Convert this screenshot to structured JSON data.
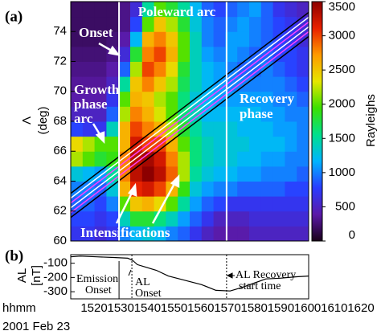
{
  "chart_data": [
    {
      "type": "heatmap",
      "panel_label": "(a)",
      "x": [
        1520,
        1525,
        1530,
        1535,
        1540,
        1545,
        1550,
        1555,
        1560,
        1565,
        1570,
        1575,
        1580,
        1585,
        1590,
        1595,
        1600,
        1605,
        1610,
        1615
      ],
      "y": [
        60,
        61,
        62,
        63,
        64,
        65,
        66,
        67,
        68,
        69,
        70,
        71,
        72,
        73,
        74,
        75
      ],
      "z": [
        [
          700,
          700,
          600,
          700,
          1000,
          1200,
          1300,
          1200,
          1000,
          900,
          700,
          500,
          400,
          400,
          400,
          500,
          500,
          500,
          500,
          500
        ],
        [
          800,
          800,
          700,
          800,
          1400,
          1800,
          1800,
          1600,
          1400,
          1100,
          900,
          700,
          500,
          500,
          500,
          600,
          600,
          600,
          600,
          600
        ],
        [
          900,
          900,
          800,
          1000,
          2000,
          2500,
          2600,
          2400,
          2000,
          1500,
          1100,
          900,
          800,
          700,
          700,
          700,
          700,
          700,
          700,
          700
        ],
        [
          1000,
          1000,
          900,
          1300,
          2600,
          3100,
          3200,
          3000,
          2600,
          1900,
          1300,
          1100,
          1000,
          1000,
          900,
          900,
          900,
          900,
          800,
          800
        ],
        [
          1300,
          1200,
          1100,
          1500,
          2800,
          3300,
          3500,
          3300,
          2900,
          2200,
          1500,
          1300,
          1200,
          1200,
          1100,
          1100,
          1000,
          1000,
          1000,
          900
        ],
        [
          2200,
          2000,
          1800,
          1900,
          2800,
          3300,
          3400,
          3200,
          2800,
          2200,
          1600,
          1400,
          1300,
          1300,
          1200,
          1200,
          1100,
          1100,
          1000,
          1000
        ],
        [
          2400,
          2200,
          2000,
          2000,
          2600,
          3200,
          3000,
          3000,
          2600,
          2000,
          1600,
          1400,
          1300,
          1300,
          1300,
          1200,
          1200,
          1200,
          1100,
          1000
        ],
        [
          800,
          700,
          700,
          1400,
          2600,
          3000,
          2800,
          2600,
          2200,
          1800,
          1500,
          1300,
          1300,
          1300,
          1200,
          1200,
          1200,
          1100,
          1100,
          1000
        ],
        [
          500,
          500,
          500,
          900,
          2200,
          2800,
          2600,
          2300,
          2000,
          1600,
          1400,
          1200,
          1200,
          1200,
          1200,
          1200,
          1100,
          1100,
          1000,
          1000
        ],
        [
          400,
          400,
          400,
          700,
          2000,
          2600,
          2500,
          2200,
          2000,
          1600,
          1300,
          1200,
          1100,
          1100,
          1100,
          1100,
          1100,
          1000,
          1000,
          900
        ],
        [
          350,
          350,
          350,
          500,
          1500,
          2500,
          2800,
          2500,
          2200,
          1700,
          1400,
          1200,
          1100,
          1000,
          1000,
          1000,
          1000,
          1000,
          900,
          800
        ],
        [
          300,
          300,
          300,
          400,
          900,
          2200,
          3000,
          2800,
          2400,
          1800,
          1400,
          1200,
          1100,
          1000,
          900,
          900,
          1000,
          900,
          800,
          700
        ],
        [
          250,
          250,
          250,
          300,
          600,
          1800,
          2800,
          3000,
          2600,
          2000,
          1400,
          1100,
          1000,
          1100,
          1000,
          900,
          900,
          800,
          800,
          700
        ],
        [
          200,
          200,
          200,
          250,
          400,
          1200,
          2600,
          2800,
          2500,
          2000,
          1400,
          1000,
          900,
          1100,
          1100,
          1000,
          900,
          800,
          700,
          600
        ],
        [
          200,
          200,
          200,
          200,
          300,
          800,
          2000,
          2500,
          2200,
          1800,
          1300,
          1000,
          900,
          1000,
          1100,
          1000,
          900,
          800,
          700,
          600
        ],
        [
          200,
          200,
          200,
          200,
          300,
          600,
          1500,
          2000,
          1800,
          1500,
          1200,
          900,
          800,
          900,
          1000,
          1100,
          900,
          700,
          600,
          500
        ]
      ],
      "xlim": [
        1520,
        1620
      ],
      "ylim": [
        60,
        76
      ],
      "yticks": [
        60,
        62,
        64,
        66,
        68,
        70,
        72,
        74
      ],
      "ylabel": "Λ",
      "ylabel_unit": "(deg)",
      "zlim": [
        0,
        3500
      ],
      "colorbar_ticks": [
        0,
        500,
        1000,
        1500,
        2000,
        2500,
        3000,
        3500
      ],
      "colorbar_label": "Rayleighs",
      "colorscale": [
        "#1a001a",
        "#5a1aa8",
        "#2a3cff",
        "#00b4ff",
        "#00e08c",
        "#3ce000",
        "#e6e600",
        "#ff9a00",
        "#e82000",
        "#8c0000"
      ],
      "vlines": [
        1540.3,
        1585.5
      ],
      "vline_color": "#ffffff",
      "annotations": [
        "Poleward arc",
        "Onset",
        "Growth",
        "phase",
        "arc",
        "Recovery",
        "phase",
        "Intensifications"
      ]
    },
    {
      "type": "line",
      "panel_label": "(b)",
      "x": [
        1520,
        1524,
        1531,
        1538,
        1544,
        1546,
        1548,
        1551,
        1556,
        1561,
        1568,
        1575,
        1581,
        1587,
        1592,
        1597,
        1602,
        1608,
        1615,
        1620
      ],
      "values": [
        -55,
        -50,
        -55,
        -60,
        -65,
        -80,
        -110,
        -125,
        -150,
        -190,
        -220,
        -250,
        -290,
        -295,
        -270,
        -240,
        -210,
        -205,
        -195,
        -190
      ],
      "color": "#000000",
      "xlim": [
        1520,
        1620
      ],
      "ylim": [
        -350,
        -40
      ],
      "yticks": [
        -100,
        -200,
        -300
      ],
      "xticks": [
        1520,
        1530,
        1540,
        1550,
        1560,
        1570,
        1580,
        1590,
        1600,
        1610,
        1620
      ],
      "xlabel": "hhmm",
      "date": "2001 Feb 23",
      "ylabel": "AL",
      "ylabel_unit": "[nT]",
      "solid_vlines": [
        1540.3
      ],
      "dotted_vlines": [
        1545.7,
        1585.5
      ],
      "annotations": [
        "Emission",
        "Onset",
        "AL",
        "Onset",
        "AL Recovery",
        "start time"
      ]
    }
  ]
}
